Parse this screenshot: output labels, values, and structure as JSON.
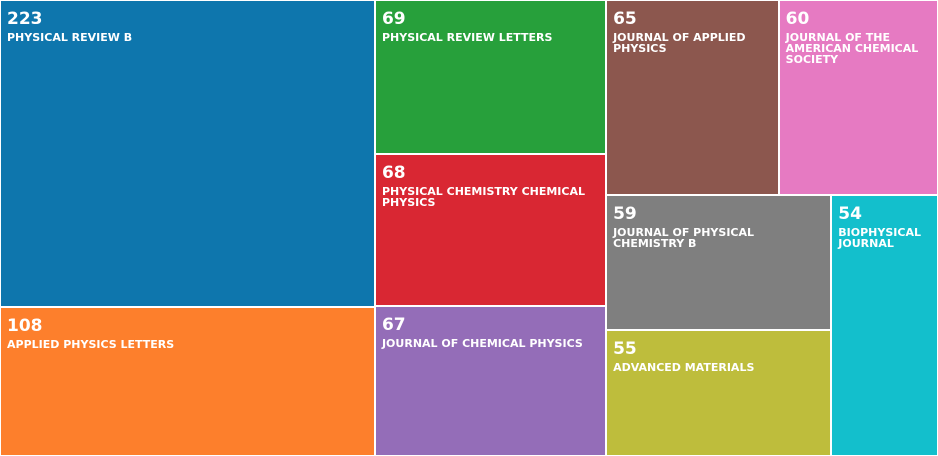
{
  "chart_data": {
    "type": "treemap",
    "categories": [
      "PHYSICAL REVIEW B",
      "APPLIED PHYSICS LETTERS",
      "PHYSICAL REVIEW LETTERS",
      "PHYSICAL CHEMISTRY CHEMICAL PHYSICS",
      "JOURNAL OF CHEMICAL PHYSICS",
      "JOURNAL OF APPLIED PHYSICS",
      "JOURNAL OF THE AMERICAN CHEMICAL SOCIETY",
      "JOURNAL OF PHYSICAL CHEMISTRY B",
      "ADVANCED MATERIALS",
      "BIOPHYSICAL JOURNAL"
    ],
    "values": [
      223,
      108,
      69,
      68,
      67,
      65,
      60,
      59,
      55,
      54
    ],
    "colors": [
      "#0e76ad",
      "#fd7f2c",
      "#27a03b",
      "#d92733",
      "#946db8",
      "#8c574e",
      "#e67ac2",
      "#7f7f7f",
      "#bebd3c",
      "#13bfcc"
    ]
  }
}
